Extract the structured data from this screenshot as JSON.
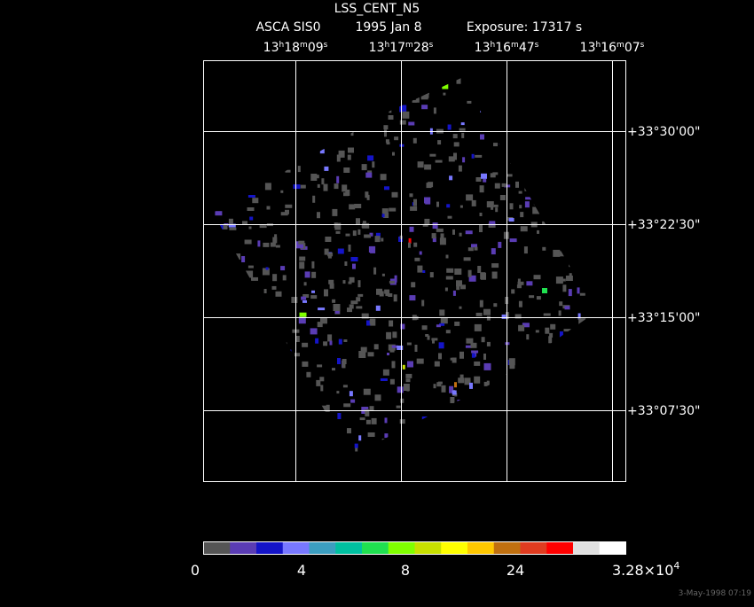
{
  "header": {
    "title": "LSS_CENT_N5",
    "instrument": "ASCA SIS0",
    "date": "1995 Jan  8",
    "exposure": "Exposure: 17317 s"
  },
  "ra_labels": [
    [
      "13",
      "h",
      "18",
      "m",
      "09",
      "s"
    ],
    [
      "13",
      "h",
      "17",
      "m",
      "28",
      "s"
    ],
    [
      "13",
      "h",
      "16",
      "m",
      "47",
      "s"
    ],
    [
      "13",
      "h",
      "16",
      "m",
      "07",
      "s"
    ]
  ],
  "dec_labels": [
    "+33°30'00\"",
    "+33°22'30\"",
    "+33°15'00\"",
    "+33°07'30\""
  ],
  "colorbar": {
    "colors": [
      "#555555",
      "#5a3cb4",
      "#1414c8",
      "#7878ff",
      "#3c9ec0",
      "#00c0a0",
      "#20e050",
      "#80ff00",
      "#c8e000",
      "#ffff00",
      "#ffc800",
      "#c07010",
      "#e03c20",
      "#ff0000",
      "#e0e0e0",
      "#ffffff"
    ],
    "labels": [
      "0",
      "4",
      "8",
      "24"
    ],
    "max_label": {
      "mantissa": "3.28×10",
      "exponent": "4"
    }
  },
  "footer": "3-May-1998 07:19"
}
